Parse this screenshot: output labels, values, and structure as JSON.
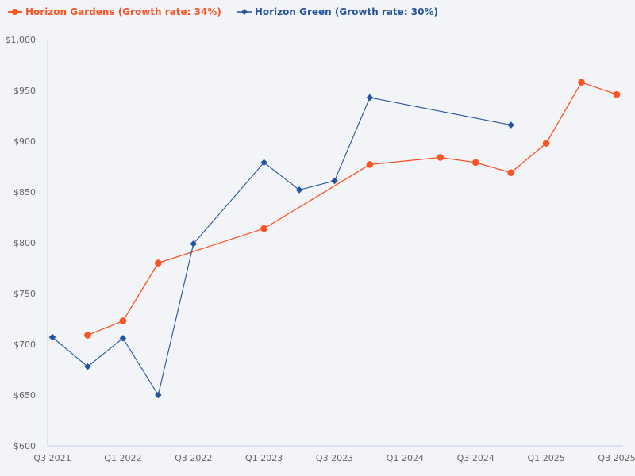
{
  "chart_data": {
    "type": "line",
    "title": "",
    "xlabel": "",
    "ylabel": "",
    "ylim": [
      600,
      1000
    ],
    "grid": false,
    "legend_position": "top-left",
    "x": [
      "Q3 2021",
      "Q4 2021",
      "Q1 2022",
      "Q2 2022",
      "Q3 2022",
      "Q4 2022",
      "Q1 2023",
      "Q2 2023",
      "Q3 2023",
      "Q4 2023",
      "Q1 2024",
      "Q2 2024",
      "Q3 2024",
      "Q4 2024",
      "Q1 2025",
      "Q2 2025",
      "Q3 2025"
    ],
    "x_tick_labels": [
      "Q3 2021",
      "Q1 2022",
      "Q3 2022",
      "Q1 2023",
      "Q3 2023",
      "Q1 2024",
      "Q3 2024",
      "Q1 2025",
      "Q3 2025"
    ],
    "y_tick_labels": [
      "$600",
      "$650",
      "$700",
      "$750",
      "$800",
      "$850",
      "$900",
      "$950",
      "$1,000"
    ],
    "y_ticks": [
      600,
      650,
      700,
      750,
      800,
      850,
      900,
      950,
      1000
    ],
    "series": [
      {
        "name": "Horizon Gardens (Growth rate: 34%)",
        "color": "#fc5424",
        "marker": "circle",
        "values": [
          null,
          709,
          723,
          780,
          null,
          null,
          814,
          null,
          null,
          877,
          null,
          884,
          879,
          869,
          898,
          958,
          946
        ]
      },
      {
        "name": "Horizon Green (Growth rate: 30%)",
        "color": "#23539f",
        "marker": "diamond",
        "values": [
          707,
          678,
          706,
          650,
          799,
          null,
          879,
          852,
          861,
          943,
          null,
          null,
          null,
          916,
          null,
          null,
          null
        ]
      }
    ]
  },
  "legend": {
    "items": [
      {
        "label": "Horizon Gardens (Growth rate: 34%)",
        "color": "#fc5424"
      },
      {
        "label": "Horizon Green (Growth rate: 30%)",
        "color": "#23539f"
      }
    ]
  },
  "colors": {
    "background": "#f2f4f7",
    "axis": "#c8d2e6",
    "tick_text": "#666666"
  }
}
